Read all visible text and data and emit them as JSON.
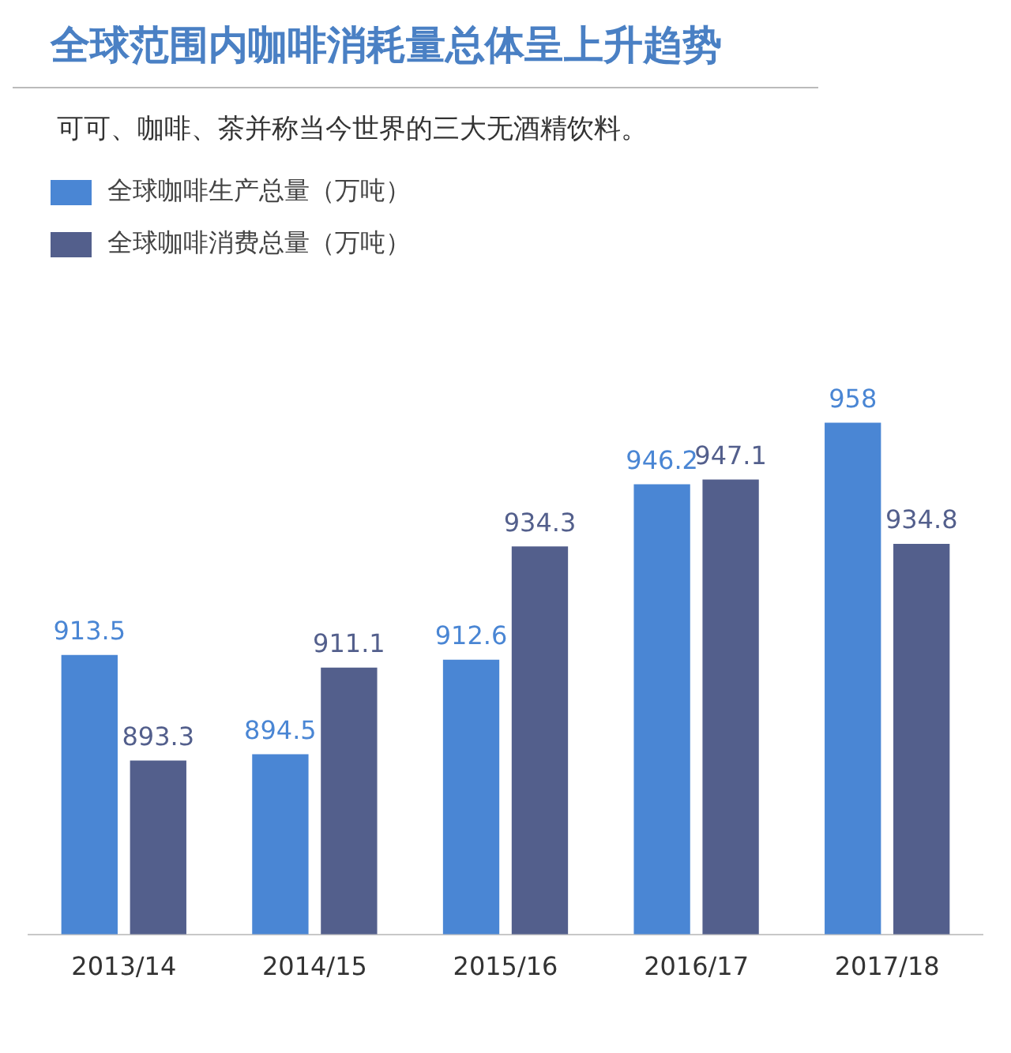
{
  "chart_data": {
    "type": "bar",
    "title": "全球范围内咖啡消耗量总体呈上升趋势",
    "subtitle": "可可、咖啡、茶并称当今世界的三大无酒精饮料。",
    "categories": [
      "2013/14",
      "2014/15",
      "2015/16",
      "2016/17",
      "2017/18"
    ],
    "series": [
      {
        "name": "全球咖啡生产总量（万吨）",
        "color": "#4a86d4",
        "values": [
          913.5,
          894.5,
          912.6,
          946.2,
          958
        ]
      },
      {
        "name": "全球咖啡消费总量（万吨）",
        "color": "#535f8c",
        "values": [
          893.3,
          911.1,
          934.3,
          947.1,
          934.8
        ]
      }
    ],
    "tick_labels": "x",
    "grid": false,
    "legend": "top left",
    "data_labels": true
  }
}
